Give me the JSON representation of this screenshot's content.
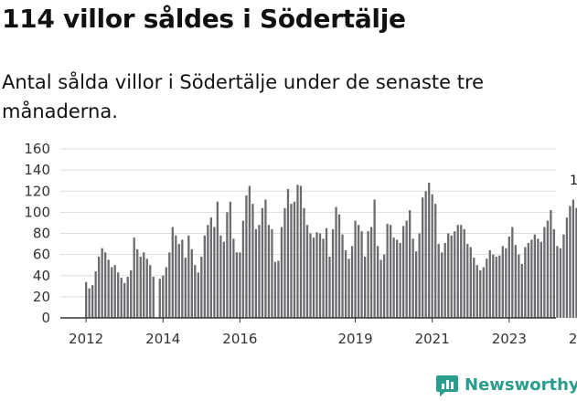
{
  "title": "114 villor såldes i Södertälje",
  "subtitle": "Antal sålda villor i Södertälje under de senaste tre månaderna.",
  "brand": {
    "name": "Newsworthy",
    "icon": "bar-chart-logo-icon",
    "color": "#2a9d8f"
  },
  "colors": {
    "bar": "#6c6c70",
    "highlight": "#1f9a9a",
    "grid": "#dddddd",
    "axis": "#333333"
  },
  "chart_data": {
    "type": "bar",
    "title": "114 villor såldes i Södertälje",
    "xlabel": "",
    "ylabel": "",
    "ylim": [
      0,
      160
    ],
    "yticks": [
      0,
      20,
      40,
      60,
      80,
      100,
      120,
      140,
      160
    ],
    "grid": true,
    "start": {
      "year": 2012,
      "month": 1
    },
    "xtick_labels": [
      "2012",
      "2014",
      "2016",
      "2019",
      "2021",
      "2023",
      "2025"
    ],
    "annotation": "114",
    "values": [
      34,
      28,
      31,
      44,
      58,
      66,
      62,
      55,
      48,
      50,
      43,
      38,
      33,
      39,
      45,
      76,
      65,
      58,
      62,
      56,
      50,
      39,
      0,
      37,
      40,
      48,
      62,
      86,
      78,
      70,
      74,
      57,
      78,
      65,
      50,
      43,
      58,
      78,
      88,
      95,
      86,
      110,
      78,
      72,
      100,
      110,
      75,
      62,
      62,
      92,
      116,
      125,
      108,
      84,
      88,
      104,
      112,
      88,
      84,
      53,
      54,
      86,
      104,
      122,
      108,
      110,
      126,
      125,
      104,
      88,
      80,
      76,
      81,
      80,
      75,
      85,
      58,
      84,
      105,
      98,
      79,
      64,
      56,
      68,
      92,
      88,
      82,
      58,
      82,
      86,
      112,
      68,
      55,
      60,
      89,
      88,
      76,
      74,
      71,
      87,
      92,
      102,
      75,
      63,
      80,
      114,
      120,
      128,
      117,
      108,
      70,
      62,
      71,
      80,
      78,
      82,
      88,
      88,
      84,
      70,
      67,
      57,
      50,
      45,
      48,
      56,
      64,
      60,
      58,
      59,
      68,
      66,
      77,
      86,
      69,
      60,
      51,
      67,
      71,
      74,
      79,
      75,
      72,
      86,
      92,
      102,
      84,
      68,
      66,
      79,
      95,
      106,
      112,
      104,
      100,
      114
    ]
  }
}
